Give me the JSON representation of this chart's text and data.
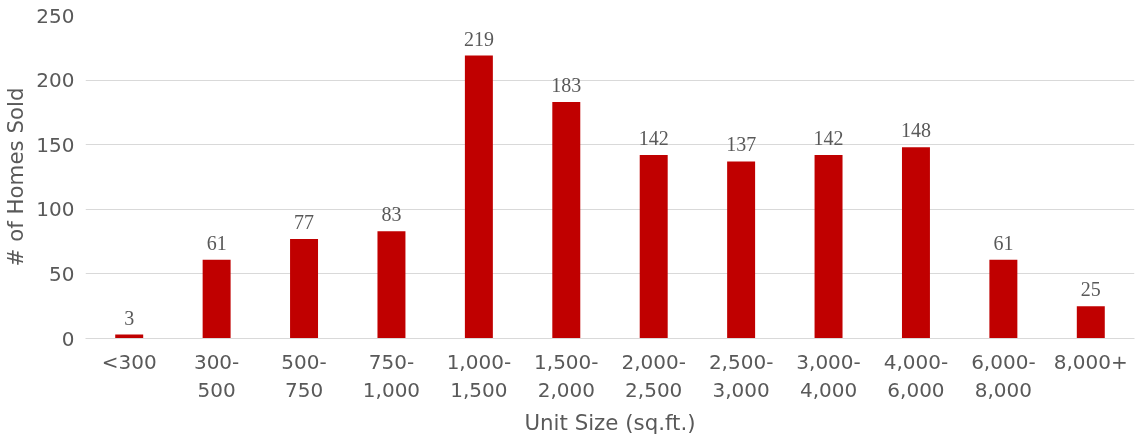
{
  "chart_data": {
    "type": "bar",
    "xlabel": "Unit Size (sq.ft.)",
    "ylabel": "# of Homes Sold",
    "categories": [
      "<300",
      "300-500",
      "500-750",
      "750-1,000",
      "1,000-1,500",
      "1,500-2,000",
      "2,000-2,500",
      "2,500-3,000",
      "3,000-4,000",
      "4,000-6,000",
      "6,000-8,000",
      "8,000+"
    ],
    "values": [
      3,
      61,
      77,
      83,
      219,
      183,
      142,
      137,
      142,
      148,
      61,
      25
    ],
    "color": "#c00000",
    "ylim": [
      0,
      250
    ],
    "yticks": [
      0,
      50,
      100,
      150,
      200,
      250
    ],
    "grid": "y",
    "data_labels": true
  }
}
